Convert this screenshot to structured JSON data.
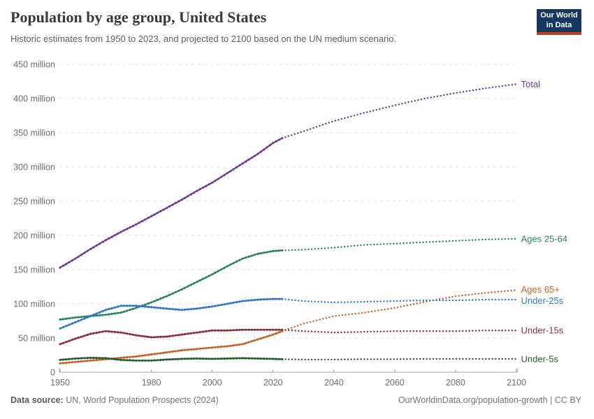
{
  "header": {
    "title": "Population by age group, United States",
    "subtitle": "Historic estimates from 1950 to 2023, and projected to 2100 based on the UN medium scenario."
  },
  "logo": {
    "line1": "Our World",
    "line2": "in Data"
  },
  "chart_data": {
    "type": "line",
    "title": "Population by age group, United States",
    "subtitle": "Historic estimates from 1950 to 2023, and projected to 2100 based on the UN medium scenario.",
    "unit": "million people",
    "x_axis": {
      "ticks": [
        1950,
        1980,
        2000,
        2020,
        2040,
        2060,
        2080,
        2100
      ],
      "range": [
        1950,
        2100
      ]
    },
    "y_axis": {
      "ticks": [
        0,
        50,
        100,
        150,
        200,
        250,
        300,
        350,
        400,
        450
      ],
      "tick_suffix": " million",
      "range": [
        0,
        450
      ],
      "grid": true
    },
    "legend_position": "right-edge-labels",
    "historic_range": [
      1950,
      2023
    ],
    "projected_range": [
      2023,
      2100
    ],
    "historic_years": [
      1950,
      1955,
      1960,
      1965,
      1970,
      1975,
      1980,
      1985,
      1990,
      1995,
      2000,
      2005,
      2010,
      2015,
      2020,
      2023
    ],
    "projected_years": [
      2023,
      2030,
      2040,
      2050,
      2060,
      2070,
      2080,
      2090,
      2100
    ],
    "series": [
      {
        "name": "Total",
        "color": "#6d3e91",
        "historic": [
          153,
          166,
          180,
          193,
          205,
          216,
          228,
          240,
          252,
          265,
          277,
          291,
          305,
          319,
          335,
          342
        ],
        "projected": [
          342,
          352,
          367,
          379,
          390,
          400,
          408,
          415,
          421
        ]
      },
      {
        "name": "Ages 25-64",
        "color": "#2c8465",
        "historic": [
          77,
          80,
          82,
          84,
          87,
          94,
          102,
          111,
          121,
          132,
          143,
          155,
          166,
          173,
          177,
          178
        ],
        "projected": [
          178,
          179,
          182,
          186,
          188,
          190,
          192,
          194,
          195
        ]
      },
      {
        "name": "Ages 65+",
        "color": "#c4632a",
        "historic": [
          13,
          15,
          17,
          19,
          21,
          23,
          26,
          29,
          32,
          34,
          36,
          38,
          41,
          48,
          55,
          60
        ],
        "projected": [
          60,
          71,
          82,
          87,
          94,
          103,
          111,
          116,
          120
        ]
      },
      {
        "name": "Under-25s",
        "color": "#3576c5",
        "historic": [
          64,
          73,
          82,
          91,
          97,
          97,
          95,
          93,
          91,
          93,
          96,
          100,
          104,
          106,
          107,
          107
        ],
        "projected": [
          107,
          104,
          102,
          103,
          104,
          105,
          105,
          106,
          106
        ]
      },
      {
        "name": "Under-15s",
        "color": "#8d2f3d",
        "historic": [
          41,
          49,
          56,
          60,
          58,
          54,
          51,
          52,
          55,
          58,
          61,
          61,
          62,
          62,
          62,
          62
        ],
        "projected": [
          62,
          60,
          58,
          59,
          60,
          60,
          60,
          61,
          61
        ]
      },
      {
        "name": "Under-5s",
        "color": "#265c2f",
        "historic": [
          18,
          20,
          21,
          20.5,
          18,
          17,
          17,
          18.5,
          19.5,
          20,
          19.5,
          20,
          20.5,
          20,
          19.5,
          19
        ],
        "projected": [
          19,
          18.5,
          18.5,
          19,
          19,
          19.5,
          19.5,
          19.5,
          19.5
        ]
      }
    ],
    "style": {
      "grid_color": "#e0e0e0",
      "axis_color": "#a3a3a3",
      "tick_label_color": "#6d6d6d"
    }
  },
  "footer": {
    "datasource_label": "Data source:",
    "datasource_value": " UN, World Population Prospects (2024)",
    "credit": "OurWorldinData.org/population-growth | CC BY"
  }
}
